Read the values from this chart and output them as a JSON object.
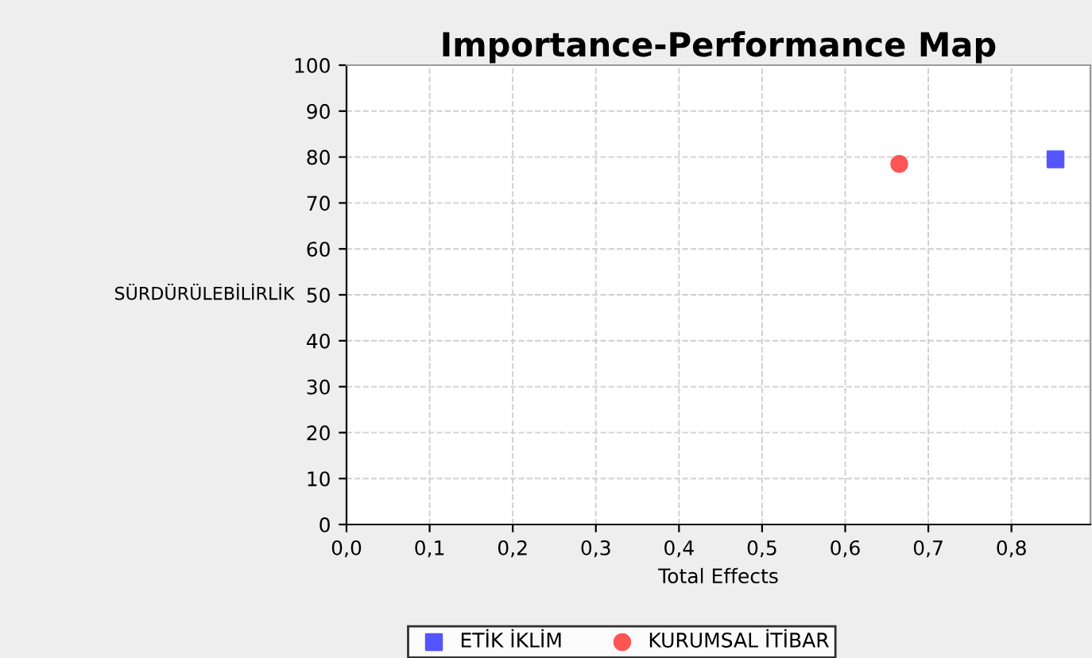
{
  "chart_data": {
    "type": "scatter",
    "title": "Importance-Performance Map",
    "xlabel": "Total Effects",
    "ylabel": "SÜRDÜRÜLEBİLİRLİK",
    "series": [
      {
        "name": "ETİK İKLİM",
        "color": "#5555ff",
        "marker": "square",
        "x": [
          0.853
        ],
        "values": [
          79.5
        ]
      },
      {
        "name": "KURUMSAL İTİBAR",
        "color": "#ff5555",
        "marker": "circle",
        "x": [
          0.665
        ],
        "values": [
          78.5
        ]
      }
    ],
    "xlim": [
      0,
      0.895
    ],
    "xticks": [
      {
        "value": 0,
        "label": "0,0"
      },
      {
        "value": 0.1,
        "label": "0,1"
      },
      {
        "value": 0.2,
        "label": "0,2"
      },
      {
        "value": 0.3,
        "label": "0,3"
      },
      {
        "value": 0.4,
        "label": "0,4"
      },
      {
        "value": 0.5,
        "label": "0,5"
      },
      {
        "value": 0.6,
        "label": "0,6"
      },
      {
        "value": 0.7,
        "label": "0,7"
      },
      {
        "value": 0.8,
        "label": "0,8"
      }
    ],
    "ylim": [
      0,
      100
    ],
    "yticks": [
      0,
      10,
      20,
      30,
      40,
      50,
      60,
      70,
      80,
      90,
      100
    ],
    "grid": true,
    "legend": "bottom"
  }
}
